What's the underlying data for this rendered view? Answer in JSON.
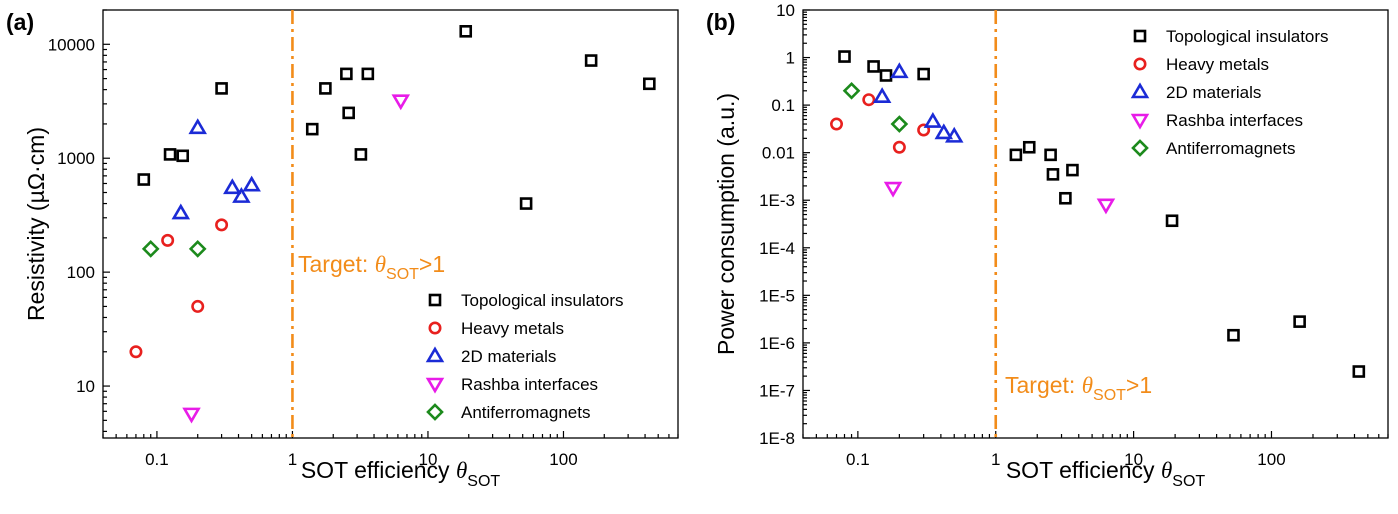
{
  "colors": {
    "target_line": "#f28c1a",
    "series": [
      "#000000",
      "#e8201e",
      "#1b2bd6",
      "#e81ce8",
      "#1c8a1c"
    ]
  },
  "markers": [
    "square",
    "circle",
    "triangle-up",
    "triangle-down",
    "diamond"
  ],
  "legend_labels": [
    "Topological insulators",
    "Heavy metals",
    "2D materials",
    "Rashba interfaces",
    "Antiferromagnets"
  ],
  "chart_data": [
    {
      "type": "scatter",
      "panel_label": "(a)",
      "ylabel": "Resistivity (µΩ·cm)",
      "xlabel": "SOT efficiency θ",
      "xlabel_sub": "SOT",
      "xscale": "log",
      "yscale": "log",
      "xlim": [
        0.04,
        700
      ],
      "ylim": [
        3.5,
        20000
      ],
      "xticks": [
        0.1,
        1,
        10,
        100
      ],
      "xtick_labels": [
        "0.1",
        "1",
        "10",
        "100"
      ],
      "yticks": [
        10,
        100,
        1000,
        10000
      ],
      "ytick_labels": [
        "10",
        "100",
        "1000",
        "10000"
      ],
      "target_line_x": 1,
      "target_label": "Target: ",
      "target_theta": "θ",
      "target_sub": "SOT",
      "target_tail": ">1",
      "legend_position": "bottom-right",
      "series": [
        {
          "name": "Topological insulators",
          "points": [
            [
              0.08,
              650
            ],
            [
              0.125,
              1080
            ],
            [
              0.155,
              1050
            ],
            [
              0.3,
              4100
            ],
            [
              1.4,
              1800
            ],
            [
              1.75,
              4100
            ],
            [
              2.5,
              5500
            ],
            [
              2.6,
              2500
            ],
            [
              3.2,
              1080
            ],
            [
              3.6,
              5500
            ],
            [
              19,
              13000
            ],
            [
              53,
              400
            ],
            [
              160,
              7200
            ],
            [
              430,
              4500
            ]
          ]
        },
        {
          "name": "Heavy metals",
          "points": [
            [
              0.07,
              20
            ],
            [
              0.12,
              190
            ],
            [
              0.2,
              50
            ],
            [
              0.3,
              260
            ]
          ]
        },
        {
          "name": "2D materials",
          "points": [
            [
              0.15,
              330
            ],
            [
              0.2,
              1850
            ],
            [
              0.36,
              550
            ],
            [
              0.42,
              460
            ],
            [
              0.5,
              580
            ]
          ]
        },
        {
          "name": "Rashba interfaces",
          "points": [
            [
              0.18,
              5.7
            ],
            [
              6.3,
              3200
            ]
          ]
        },
        {
          "name": "Antiferromagnets",
          "points": [
            [
              0.09,
              160
            ],
            [
              0.2,
              160
            ]
          ]
        }
      ]
    },
    {
      "type": "scatter",
      "panel_label": "(b)",
      "ylabel": "Power consumption (a.u.)",
      "xlabel": "SOT efficiency θ",
      "xlabel_sub": "SOT",
      "xscale": "log",
      "yscale": "log",
      "xlim": [
        0.04,
        700
      ],
      "ylim": [
        1e-08,
        10
      ],
      "xticks": [
        0.1,
        1,
        10,
        100
      ],
      "xtick_labels": [
        "0.1",
        "1",
        "10",
        "100"
      ],
      "yticks": [
        1e-08,
        1e-07,
        1e-06,
        1e-05,
        0.0001,
        0.001,
        0.01,
        0.1,
        1,
        10
      ],
      "ytick_labels": [
        "1E-8",
        "1E-7",
        "1E-6",
        "1E-5",
        "1E-4",
        "1E-3",
        "0.01",
        "0.1",
        "1",
        "10"
      ],
      "target_line_x": 1,
      "target_label": "Target: ",
      "target_theta": "θ",
      "target_sub": "SOT",
      "target_tail": ">1",
      "legend_position": "top-right",
      "series": [
        {
          "name": "Topological insulators",
          "points": [
            [
              0.08,
              1.05
            ],
            [
              0.13,
              0.65
            ],
            [
              0.16,
              0.42
            ],
            [
              0.3,
              0.45
            ],
            [
              1.4,
              0.009
            ],
            [
              1.75,
              0.013
            ],
            [
              2.5,
              0.009
            ],
            [
              2.6,
              0.0035
            ],
            [
              3.2,
              0.0011
            ],
            [
              3.6,
              0.0043
            ],
            [
              19,
              0.00037
            ],
            [
              53,
              1.45e-06
            ],
            [
              160,
              2.8e-06
            ],
            [
              430,
              2.5e-07
            ]
          ]
        },
        {
          "name": "Heavy metals",
          "points": [
            [
              0.07,
              0.04
            ],
            [
              0.12,
              0.13
            ],
            [
              0.2,
              0.013
            ],
            [
              0.3,
              0.03
            ]
          ]
        },
        {
          "name": "2D materials",
          "points": [
            [
              0.15,
              0.15
            ],
            [
              0.2,
              0.5
            ],
            [
              0.35,
              0.045
            ],
            [
              0.42,
              0.026
            ],
            [
              0.5,
              0.022
            ]
          ]
        },
        {
          "name": "Rashba interfaces",
          "points": [
            [
              0.18,
              0.0018
            ],
            [
              6.3,
              0.0008
            ]
          ]
        },
        {
          "name": "Antiferromagnets",
          "points": [
            [
              0.09,
              0.2
            ],
            [
              0.2,
              0.04
            ]
          ]
        }
      ]
    }
  ]
}
